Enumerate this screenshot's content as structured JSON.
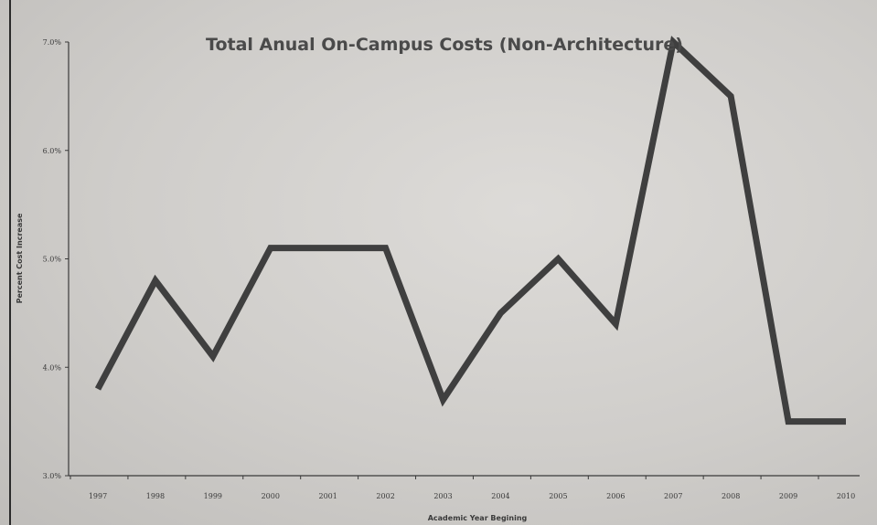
{
  "chart_data": {
    "type": "line",
    "title": "Total Anual On-Campus Costs (Non-Architecture)",
    "xlabel": "Academic Year Begining",
    "ylabel": "Percent Cost Increase",
    "categories": [
      "1997",
      "1998",
      "1999",
      "2000",
      "2001",
      "2002",
      "2003",
      "2004",
      "2005",
      "2006",
      "2007",
      "2008",
      "2009",
      "2010"
    ],
    "series": [
      {
        "values": [
          3.8,
          4.8,
          4.1,
          5.1,
          5.1,
          5.1,
          3.7,
          4.5,
          5.0,
          4.4,
          7.0,
          6.5,
          3.5,
          3.5
        ]
      }
    ],
    "yticks": [
      "3.0%",
      "4.0%",
      "5.0%",
      "6.0%",
      "7.0%"
    ],
    "ylim": [
      3.0,
      7.0
    ],
    "grid": false,
    "legend": "none",
    "line_color": "#3f3f3f"
  }
}
